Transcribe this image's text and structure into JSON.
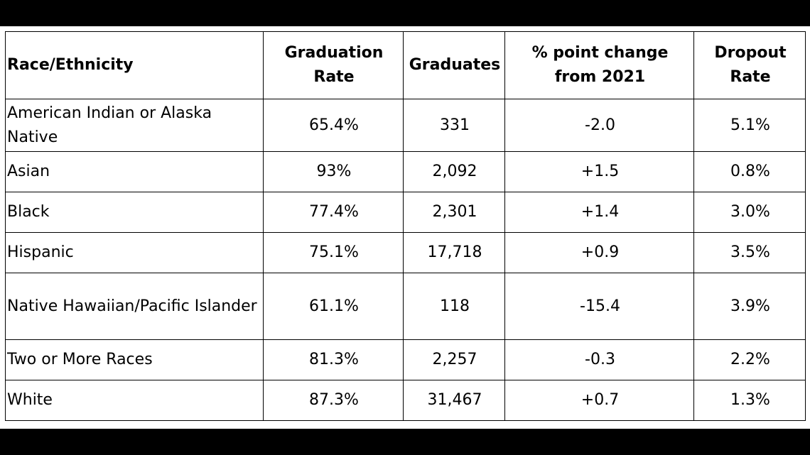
{
  "table": {
    "headers": [
      {
        "lines": [
          "Race/Ethnicity"
        ]
      },
      {
        "lines": [
          "Graduation",
          "Rate"
        ]
      },
      {
        "lines": [
          "Graduates"
        ]
      },
      {
        "lines": [
          "% point change",
          "from 2021"
        ]
      },
      {
        "lines": [
          "Dropout",
          "Rate"
        ]
      }
    ],
    "rows": [
      {
        "name": "American Indian or Alaska Native",
        "rate": "65.4%",
        "graduates": "331",
        "change": "-2.0",
        "dropout": "5.1%"
      },
      {
        "name": "Asian",
        "rate": "93%",
        "graduates": "2,092",
        "change": "+1.5",
        "dropout": "0.8%"
      },
      {
        "name": "Black",
        "rate": "77.4%",
        "graduates": "2,301",
        "change": "+1.4",
        "dropout": "3.0%"
      },
      {
        "name": "Hispanic",
        "rate": "75.1%",
        "graduates": "17,718",
        "change": "+0.9",
        "dropout": "3.5%"
      },
      {
        "name": "Native Hawaiian/Pacific Islander",
        "rate": "61.1%",
        "graduates": "118",
        "change": "-15.4",
        "dropout": "3.9%"
      },
      {
        "name": "Two or More Races",
        "rate": "81.3%",
        "graduates": "2,257",
        "change": "-0.3",
        "dropout": "2.2%"
      },
      {
        "name": "White",
        "rate": "87.3%",
        "graduates": "31,467",
        "change": "+0.7",
        "dropout": "1.3%"
      }
    ]
  }
}
